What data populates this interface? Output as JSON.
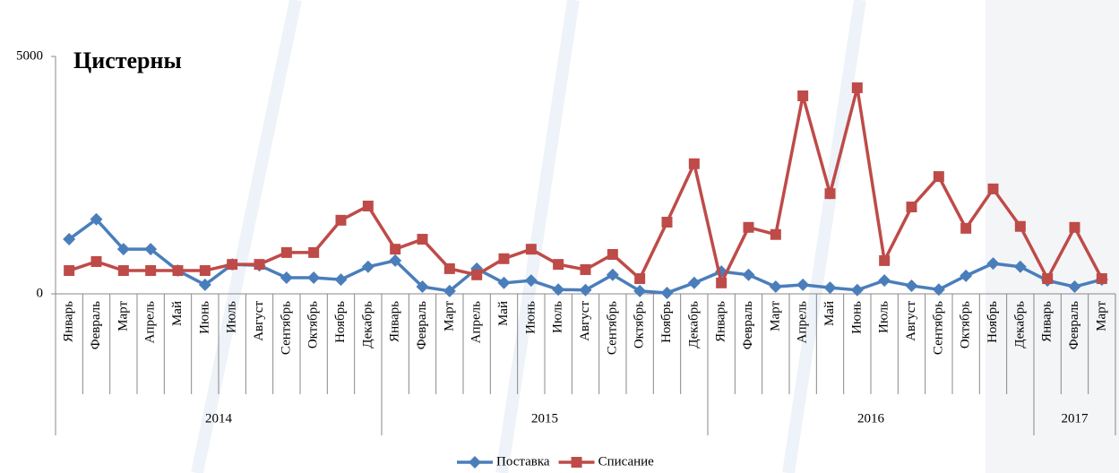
{
  "chart_data": {
    "type": "line",
    "title": "Цистерны",
    "groups": [
      {
        "name": "2014",
        "categories": [
          "Январь",
          "Февраль",
          "Март",
          "Апрель",
          "Май",
          "Июнь",
          "Июль",
          "Август",
          "Сентябрь",
          "Октябрь",
          "Ноябрь",
          "Декабрь"
        ]
      },
      {
        "name": "2015",
        "categories": [
          "Январь",
          "Февраль",
          "Март",
          "Апрель",
          "Май",
          "Июнь",
          "Июль",
          "Август",
          "Сентябрь",
          "Октябрь",
          "Ноябрь",
          "Декабрь"
        ]
      },
      {
        "name": "2016",
        "categories": [
          "Январь",
          "Февраль",
          "Март",
          "Апрель",
          "Май",
          "Июнь",
          "Июль",
          "Август",
          "Сентябрь",
          "Октябрь",
          "Ноябрь",
          "Декабрь"
        ]
      },
      {
        "name": "2017",
        "categories": [
          "Январь",
          "Февраль",
          "Март"
        ]
      }
    ],
    "series": [
      {
        "name": "Поставка",
        "color": "#4a7ebb",
        "marker": "diamond",
        "values": [
          1150,
          1570,
          940,
          940,
          490,
          190,
          620,
          600,
          340,
          340,
          300,
          570,
          700,
          150,
          60,
          530,
          230,
          280,
          90,
          80,
          400,
          60,
          20,
          230,
          470,
          400,
          150,
          190,
          130,
          80,
          280,
          170,
          90,
          380,
          640,
          570,
          280,
          150,
          300
        ]
      },
      {
        "name": "Списание",
        "color": "#be4b48",
        "marker": "square",
        "values": [
          490,
          680,
          490,
          490,
          490,
          490,
          620,
          620,
          870,
          870,
          1550,
          1850,
          940,
          1150,
          530,
          400,
          740,
          940,
          620,
          510,
          830,
          320,
          1510,
          2740,
          230,
          1400,
          1250,
          4170,
          2110,
          4340,
          700,
          1830,
          2470,
          1380,
          2210,
          1420,
          320,
          1400,
          320
        ]
      }
    ],
    "ylim": [
      0,
      5000
    ],
    "yticks": [
      0,
      5000
    ],
    "legend": "bottom"
  }
}
